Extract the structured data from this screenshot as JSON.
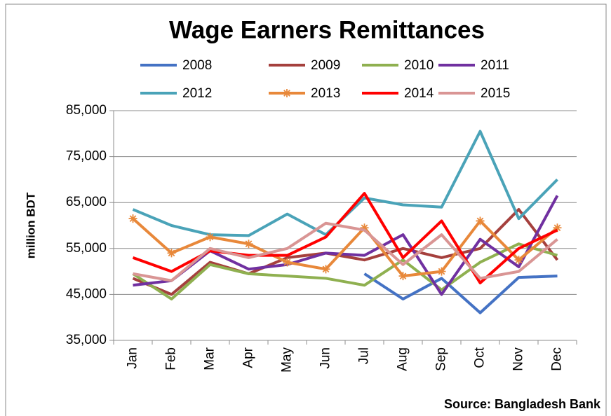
{
  "chart_data": {
    "type": "line",
    "title": "Wage Earners Remittances",
    "y_label": "million BDT",
    "source": "Source: Bangladesh Bank",
    "categories": [
      "Jan",
      "Feb",
      "Mar",
      "Apr",
      "May",
      "Jun",
      "Jul",
      "Aug",
      "Sep",
      "Oct",
      "Nov",
      "Dec"
    ],
    "ylim": [
      35000,
      85000
    ],
    "yticks": [
      {
        "value": 35000,
        "label": "35,000"
      },
      {
        "value": 45000,
        "label": "45,000"
      },
      {
        "value": 55000,
        "label": "55,000"
      },
      {
        "value": 65000,
        "label": "65,000"
      },
      {
        "value": 75000,
        "label": "75,000"
      },
      {
        "value": 85000,
        "label": "85,000"
      }
    ],
    "grid": true,
    "legend": "top",
    "series": [
      {
        "name": "2008",
        "color": "#4472c4",
        "values": [
          null,
          null,
          null,
          null,
          null,
          null,
          49500,
          44000,
          48500,
          41000,
          48700,
          49000
        ]
      },
      {
        "name": "2009",
        "color": "#a5403d",
        "values": [
          48500,
          45000,
          52000,
          49500,
          53000,
          54000,
          52500,
          55000,
          53000,
          55000,
          63500,
          52500
        ]
      },
      {
        "name": "2010",
        "color": "#8fb050",
        "values": [
          49500,
          44000,
          51500,
          49500,
          49000,
          48500,
          47000,
          52500,
          46000,
          52000,
          56000,
          53500
        ]
      },
      {
        "name": "2011",
        "color": "#7030a0",
        "values": [
          47000,
          48000,
          54500,
          50500,
          51500,
          54000,
          53500,
          58000,
          45000,
          57000,
          51000,
          66500
        ]
      },
      {
        "name": "2012",
        "color": "#4aa3b8",
        "values": [
          63500,
          60000,
          58000,
          57800,
          62500,
          58000,
          66000,
          64500,
          64000,
          80500,
          61500,
          70000
        ]
      },
      {
        "name": "2013",
        "color": "#e8883a",
        "marker": "star",
        "values": [
          61500,
          54000,
          57500,
          56000,
          52000,
          50500,
          59500,
          49000,
          50000,
          61000,
          52500,
          59500
        ]
      },
      {
        "name": "2014",
        "color": "#ff0000",
        "values": [
          53000,
          50000,
          54500,
          53500,
          53500,
          57500,
          67000,
          53000,
          61000,
          47500,
          55000,
          59000
        ]
      },
      {
        "name": "2015",
        "color": "#d99594",
        "values": [
          49500,
          48000,
          55000,
          53000,
          55000,
          60500,
          59000,
          51500,
          58000,
          48500,
          50000,
          57000
        ]
      }
    ]
  }
}
